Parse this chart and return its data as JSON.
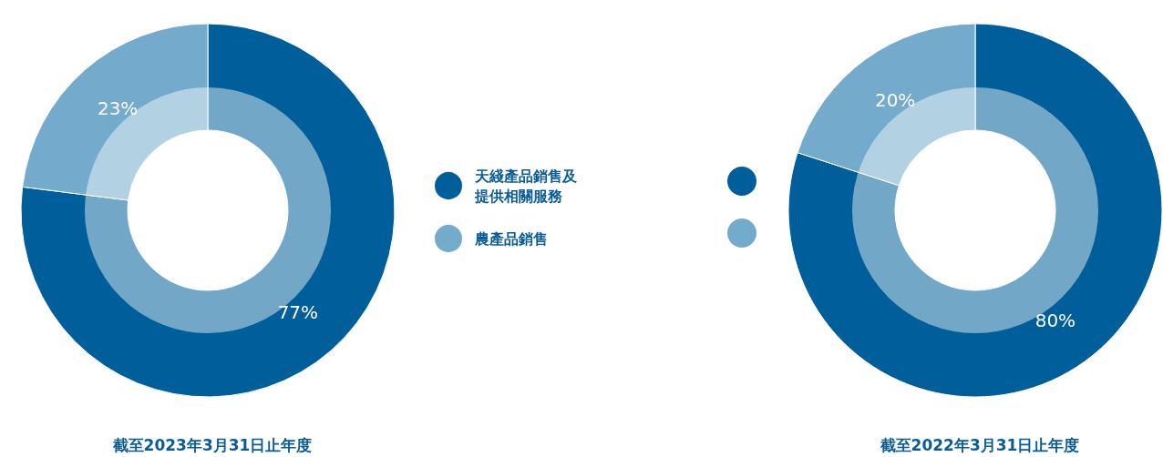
{
  "chart_data": [
    {
      "type": "donut",
      "title": "截至2023年3月31日止年度",
      "categories": [
        "天綫產品銷售及提供相關服務",
        "農產品銷售"
      ],
      "values": [
        77,
        23
      ],
      "colors": [
        "#005f9a",
        "#74abcd"
      ],
      "value_labels": [
        "77%",
        "23%"
      ],
      "legend": "right"
    },
    {
      "type": "donut",
      "title": "截至2022年3月31日止年度",
      "categories": [
        null,
        null
      ],
      "values": [
        80,
        20
      ],
      "colors": [
        "#005f9a",
        "#74abcd"
      ],
      "value_labels": [
        "80%",
        "20%"
      ]
    }
  ]
}
